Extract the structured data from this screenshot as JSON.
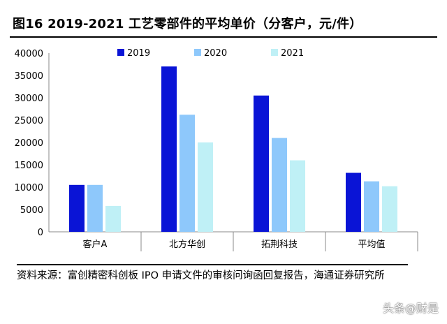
{
  "title": "图16 2019-2021 工艺零部件的平均单价（分客户，元/件）",
  "source": "资料来源：富创精密科创板 IPO 申请文件的审核问询函回复报告，海通证券研究所",
  "watermark": "头条@财是",
  "colors": {
    "2019": "#0a14d6",
    "2020": "#8ec8fb",
    "2021": "#bff0f6"
  },
  "chart_data": {
    "type": "bar",
    "title": "",
    "xlabel": "",
    "ylabel": "",
    "ylim": [
      0,
      40000
    ],
    "yticks": [
      0,
      5000,
      10000,
      15000,
      20000,
      25000,
      30000,
      35000,
      40000
    ],
    "grid": false,
    "legend": "top",
    "categories": [
      "客户A",
      "北方华创",
      "拓荆科技",
      "平均值"
    ],
    "series": [
      {
        "name": "2019",
        "values": [
          10500,
          37000,
          30500,
          13200
        ]
      },
      {
        "name": "2020",
        "values": [
          10500,
          26200,
          21000,
          11300
        ]
      },
      {
        "name": "2021",
        "values": [
          5800,
          20000,
          16000,
          10200
        ]
      }
    ]
  }
}
